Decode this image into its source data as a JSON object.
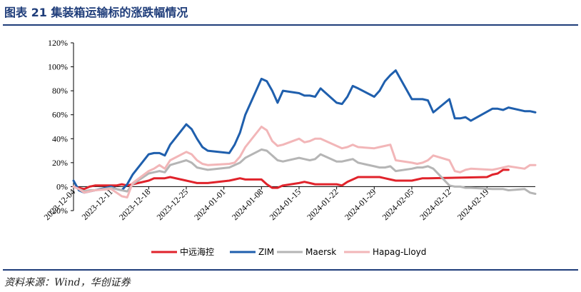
{
  "page": {
    "title": "图表 21  集装箱运输标的涨跌幅情况",
    "source": "资料来源：Wind，华创证券"
  },
  "chart_data": {
    "type": "line",
    "title": "",
    "xlabel": "",
    "ylabel": "",
    "ylim": [
      -20,
      120
    ],
    "yticks": [
      "120%",
      "100%",
      "80%",
      "60%",
      "40%",
      "20%",
      "0%",
      "-20%"
    ],
    "ytick_values": [
      120,
      100,
      80,
      60,
      40,
      20,
      0,
      -20
    ],
    "xticks": [
      "2023-12-04",
      "2023-12-11",
      "2023-12-18",
      "2023-12-25",
      "2024-01-01",
      "2024-01-08",
      "2024-01-15",
      "2024-01-22",
      "2024-01-29",
      "2024-02-05",
      "2024-02-12",
      "2024-02-19"
    ],
    "grid": false,
    "legend_position": "bottom",
    "series": [
      {
        "name": "中远海控",
        "color": "#e0232b",
        "points": [
          [
            "2023-12-04",
            0
          ],
          [
            "2023-12-05",
            -1
          ],
          [
            "2023-12-06",
            -2
          ],
          [
            "2023-12-07",
            0
          ],
          [
            "2023-12-08",
            1
          ],
          [
            "2023-12-11",
            1
          ],
          [
            "2023-12-12",
            1
          ],
          [
            "2023-12-13",
            2
          ],
          [
            "2023-12-14",
            1
          ],
          [
            "2023-12-15",
            2
          ],
          [
            "2023-12-18",
            5
          ],
          [
            "2023-12-19",
            7
          ],
          [
            "2023-12-20",
            7
          ],
          [
            "2023-12-21",
            7
          ],
          [
            "2023-12-22",
            8
          ],
          [
            "2023-12-25",
            5
          ],
          [
            "2023-12-26",
            4
          ],
          [
            "2023-12-27",
            3
          ],
          [
            "2023-12-28",
            3
          ],
          [
            "2023-12-29",
            3
          ],
          [
            "2024-01-02",
            5
          ],
          [
            "2024-01-03",
            6
          ],
          [
            "2024-01-04",
            7
          ],
          [
            "2024-01-05",
            6
          ],
          [
            "2024-01-08",
            6
          ],
          [
            "2024-01-09",
            2
          ],
          [
            "2024-01-10",
            -1
          ],
          [
            "2024-01-11",
            -1
          ],
          [
            "2024-01-12",
            1
          ],
          [
            "2024-01-15",
            3
          ],
          [
            "2024-01-16",
            4
          ],
          [
            "2024-01-17",
            3
          ],
          [
            "2024-01-18",
            2
          ],
          [
            "2024-01-19",
            2
          ],
          [
            "2024-01-22",
            2
          ],
          [
            "2024-01-23",
            1
          ],
          [
            "2024-01-24",
            4
          ],
          [
            "2024-01-25",
            6
          ],
          [
            "2024-01-26",
            8
          ],
          [
            "2024-01-29",
            8
          ],
          [
            "2024-01-30",
            8
          ],
          [
            "2024-01-31",
            7
          ],
          [
            "2024-02-01",
            6
          ],
          [
            "2024-02-02",
            5
          ],
          [
            "2024-02-05",
            5
          ],
          [
            "2024-02-06",
            6
          ],
          [
            "2024-02-07",
            7
          ],
          [
            "2024-02-08",
            7
          ],
          [
            "2024-02-19",
            8
          ],
          [
            "2024-02-20",
            10
          ],
          [
            "2024-02-21",
            11
          ],
          [
            "2024-02-22",
            14
          ],
          [
            "2024-02-23",
            14
          ]
        ]
      },
      {
        "name": "ZIM",
        "color": "#1f5fad",
        "points": [
          [
            "2023-12-04",
            5
          ],
          [
            "2023-12-05",
            -3
          ],
          [
            "2023-12-06",
            -5
          ],
          [
            "2023-12-07",
            -4
          ],
          [
            "2023-12-08",
            -3
          ],
          [
            "2023-12-11",
            0
          ],
          [
            "2023-12-12",
            -2
          ],
          [
            "2023-12-13",
            -3
          ],
          [
            "2023-12-14",
            2
          ],
          [
            "2023-12-15",
            10
          ],
          [
            "2023-12-18",
            27
          ],
          [
            "2023-12-19",
            28
          ],
          [
            "2023-12-20",
            28
          ],
          [
            "2023-12-21",
            26
          ],
          [
            "2023-12-22",
            35
          ],
          [
            "2023-12-25",
            52
          ],
          [
            "2023-12-26",
            48
          ],
          [
            "2023-12-27",
            40
          ],
          [
            "2023-12-28",
            33
          ],
          [
            "2023-12-29",
            30
          ],
          [
            "2024-01-02",
            28
          ],
          [
            "2024-01-03",
            35
          ],
          [
            "2024-01-04",
            45
          ],
          [
            "2024-01-05",
            60
          ],
          [
            "2024-01-08",
            90
          ],
          [
            "2024-01-09",
            88
          ],
          [
            "2024-01-10",
            80
          ],
          [
            "2024-01-11",
            70
          ],
          [
            "2024-01-12",
            80
          ],
          [
            "2024-01-15",
            78
          ],
          [
            "2024-01-16",
            76
          ],
          [
            "2024-01-17",
            76
          ],
          [
            "2024-01-18",
            75
          ],
          [
            "2024-01-19",
            82
          ],
          [
            "2024-01-22",
            70
          ],
          [
            "2024-01-23",
            69
          ],
          [
            "2024-01-24",
            75
          ],
          [
            "2024-01-25",
            84
          ],
          [
            "2024-01-26",
            82
          ],
          [
            "2024-01-29",
            75
          ],
          [
            "2024-01-30",
            80
          ],
          [
            "2024-01-31",
            88
          ],
          [
            "2024-02-01",
            93
          ],
          [
            "2024-02-02",
            97
          ],
          [
            "2024-02-05",
            73
          ],
          [
            "2024-02-06",
            73
          ],
          [
            "2024-02-07",
            73
          ],
          [
            "2024-02-08",
            72
          ],
          [
            "2024-02-09",
            62
          ],
          [
            "2024-02-12",
            73
          ],
          [
            "2024-02-13",
            57
          ],
          [
            "2024-02-14",
            57
          ],
          [
            "2024-02-15",
            58
          ],
          [
            "2024-02-16",
            55
          ],
          [
            "2024-02-20",
            65
          ],
          [
            "2024-02-21",
            65
          ],
          [
            "2024-02-22",
            64
          ],
          [
            "2024-02-23",
            66
          ],
          [
            "2024-02-26",
            63
          ],
          [
            "2024-02-27",
            63
          ],
          [
            "2024-02-28",
            62
          ]
        ]
      },
      {
        "name": "Maersk",
        "color": "#b5b5b5",
        "points": [
          [
            "2023-12-04",
            0
          ],
          [
            "2023-12-05",
            -2
          ],
          [
            "2023-12-06",
            -4
          ],
          [
            "2023-12-07",
            -3
          ],
          [
            "2023-12-08",
            -3
          ],
          [
            "2023-12-11",
            -1
          ],
          [
            "2023-12-12",
            -2
          ],
          [
            "2023-12-13",
            -3
          ],
          [
            "2023-12-14",
            -4
          ],
          [
            "2023-12-15",
            2
          ],
          [
            "2023-12-18",
            11
          ],
          [
            "2023-12-19",
            12
          ],
          [
            "2023-12-20",
            13
          ],
          [
            "2023-12-21",
            12
          ],
          [
            "2023-12-22",
            18
          ],
          [
            "2023-12-25",
            22
          ],
          [
            "2023-12-26",
            20
          ],
          [
            "2023-12-27",
            16
          ],
          [
            "2023-12-28",
            15
          ],
          [
            "2023-12-29",
            14
          ],
          [
            "2024-01-02",
            16
          ],
          [
            "2024-01-03",
            18
          ],
          [
            "2024-01-04",
            20
          ],
          [
            "2024-01-05",
            24
          ],
          [
            "2024-01-08",
            31
          ],
          [
            "2024-01-09",
            30
          ],
          [
            "2024-01-10",
            26
          ],
          [
            "2024-01-11",
            22
          ],
          [
            "2024-01-12",
            21
          ],
          [
            "2024-01-15",
            24
          ],
          [
            "2024-01-16",
            23
          ],
          [
            "2024-01-17",
            22
          ],
          [
            "2024-01-18",
            23
          ],
          [
            "2024-01-19",
            27
          ],
          [
            "2024-01-22",
            21
          ],
          [
            "2024-01-23",
            21
          ],
          [
            "2024-01-24",
            22
          ],
          [
            "2024-01-25",
            23
          ],
          [
            "2024-01-26",
            20
          ],
          [
            "2024-01-29",
            17
          ],
          [
            "2024-01-30",
            16
          ],
          [
            "2024-01-31",
            16
          ],
          [
            "2024-02-01",
            17
          ],
          [
            "2024-02-02",
            13
          ],
          [
            "2024-02-05",
            15
          ],
          [
            "2024-02-06",
            16
          ],
          [
            "2024-02-07",
            16
          ],
          [
            "2024-02-08",
            17
          ],
          [
            "2024-02-09",
            15
          ],
          [
            "2024-02-12",
            1
          ],
          [
            "2024-02-13",
            0
          ],
          [
            "2024-02-14",
            0
          ],
          [
            "2024-02-15",
            -1
          ],
          [
            "2024-02-16",
            -1
          ],
          [
            "2024-02-20",
            -2
          ],
          [
            "2024-02-21",
            -2
          ],
          [
            "2024-02-22",
            -2
          ],
          [
            "2024-02-23",
            -3
          ],
          [
            "2024-02-26",
            -2
          ],
          [
            "2024-02-27",
            -5
          ],
          [
            "2024-02-28",
            -6
          ]
        ]
      },
      {
        "name": "Hapag-Lloyd",
        "color": "#f2b6b8",
        "points": [
          [
            "2023-12-04",
            0
          ],
          [
            "2023-12-05",
            -2
          ],
          [
            "2023-12-06",
            -5
          ],
          [
            "2023-12-07",
            -4
          ],
          [
            "2023-12-08",
            -3
          ],
          [
            "2023-12-11",
            -2
          ],
          [
            "2023-12-12",
            -5
          ],
          [
            "2023-12-13",
            -8
          ],
          [
            "2023-12-14",
            -9
          ],
          [
            "2023-12-15",
            3
          ],
          [
            "2023-12-18",
            13
          ],
          [
            "2023-12-19",
            15
          ],
          [
            "2023-12-20",
            18
          ],
          [
            "2023-12-21",
            15
          ],
          [
            "2023-12-22",
            22
          ],
          [
            "2023-12-25",
            29
          ],
          [
            "2023-12-26",
            27
          ],
          [
            "2023-12-27",
            22
          ],
          [
            "2023-12-28",
            19
          ],
          [
            "2023-12-29",
            18
          ],
          [
            "2024-01-02",
            19
          ],
          [
            "2024-01-03",
            20
          ],
          [
            "2024-01-04",
            25
          ],
          [
            "2024-01-05",
            33
          ],
          [
            "2024-01-08",
            50
          ],
          [
            "2024-01-09",
            47
          ],
          [
            "2024-01-10",
            38
          ],
          [
            "2024-01-11",
            34
          ],
          [
            "2024-01-12",
            35
          ],
          [
            "2024-01-15",
            40
          ],
          [
            "2024-01-16",
            37
          ],
          [
            "2024-01-17",
            38
          ],
          [
            "2024-01-18",
            40
          ],
          [
            "2024-01-19",
            40
          ],
          [
            "2024-01-22",
            34
          ],
          [
            "2024-01-23",
            32
          ],
          [
            "2024-01-24",
            33
          ],
          [
            "2024-01-25",
            35
          ],
          [
            "2024-01-26",
            33
          ],
          [
            "2024-01-29",
            32
          ],
          [
            "2024-01-30",
            33
          ],
          [
            "2024-01-31",
            34
          ],
          [
            "2024-02-01",
            35
          ],
          [
            "2024-02-02",
            22
          ],
          [
            "2024-02-05",
            20
          ],
          [
            "2024-02-06",
            19
          ],
          [
            "2024-02-07",
            20
          ],
          [
            "2024-02-08",
            22
          ],
          [
            "2024-02-09",
            26
          ],
          [
            "2024-02-12",
            22
          ],
          [
            "2024-02-13",
            13
          ],
          [
            "2024-02-14",
            12
          ],
          [
            "2024-02-15",
            14
          ],
          [
            "2024-02-16",
            15
          ],
          [
            "2024-02-20",
            14
          ],
          [
            "2024-02-21",
            15
          ],
          [
            "2024-02-22",
            16
          ],
          [
            "2024-02-23",
            17
          ],
          [
            "2024-02-26",
            15
          ],
          [
            "2024-02-27",
            18
          ],
          [
            "2024-02-28",
            18
          ]
        ]
      }
    ]
  }
}
